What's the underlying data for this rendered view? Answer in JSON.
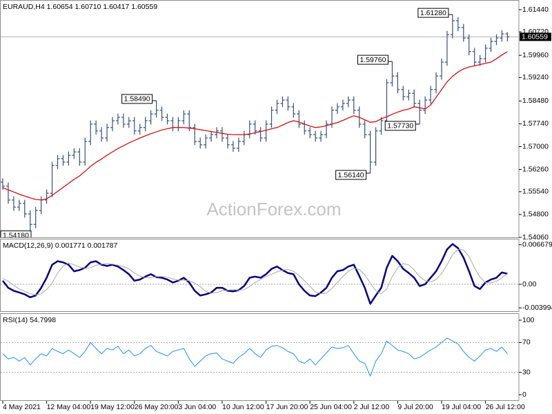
{
  "chart_data": [
    {
      "type": "ohlc",
      "title": "EURAUD,H4  1.60654 1.60710 1.60417 1.60559",
      "watermark": "ActionForex.com",
      "color": "#34507e",
      "categories": [
        "4 May 2021",
        null,
        null,
        null,
        null,
        null,
        null,
        null,
        "12 May 04:00",
        null,
        null,
        null,
        null,
        null,
        null,
        null,
        "19 May 12:00",
        null,
        null,
        null,
        null,
        null,
        null,
        null,
        "26 May 20:00",
        null,
        null,
        null,
        null,
        null,
        null,
        null,
        "3 Jun 04:00",
        null,
        null,
        null,
        null,
        null,
        null,
        null,
        "10 Jun 12:00",
        null,
        null,
        null,
        null,
        null,
        null,
        null,
        "17 Jun 20:00",
        null,
        null,
        null,
        null,
        null,
        null,
        null,
        "25 Jun 04:00",
        null,
        null,
        null,
        null,
        null,
        null,
        null,
        "2 Jul 12:00",
        null,
        null,
        null,
        null,
        null,
        null,
        null,
        "9 Jul 20:00",
        null,
        null,
        null,
        null,
        null,
        null,
        null,
        "19 Jul 04:00",
        null,
        null,
        null,
        null,
        null,
        null,
        null,
        "26 Jul 12:00",
        null,
        null,
        null,
        null
      ],
      "open": [
        1.5585,
        1.5572,
        1.5527,
        1.5504,
        1.5516,
        1.5482,
        1.5448,
        1.5493,
        1.5527,
        1.5549,
        1.5639,
        1.5661,
        1.565,
        1.5672,
        1.5683,
        1.565,
        1.5717,
        1.5773,
        1.5751,
        1.5728,
        1.5762,
        1.5784,
        1.5795,
        1.5773,
        1.5784,
        1.5751,
        1.5762,
        1.5784,
        1.5806,
        1.5818,
        1.5795,
        1.5784,
        1.5762,
        1.5784,
        1.5806,
        1.5762,
        1.5717,
        1.5706,
        1.5728,
        1.5739,
        1.5751,
        1.5728,
        1.5706,
        1.5695,
        1.5717,
        1.5739,
        1.5773,
        1.5751,
        1.5728,
        1.5773,
        1.5818,
        1.584,
        1.5851,
        1.5829,
        1.5806,
        1.5773,
        1.5751,
        1.5739,
        1.5728,
        1.5739,
        1.5773,
        1.5818,
        1.5829,
        1.584,
        1.5851,
        1.5818,
        1.5773,
        1.5739,
        1.565,
        1.5751,
        1.5784,
        1.5907,
        1.5929,
        1.5885,
        1.5862,
        1.5873,
        1.584,
        1.5818,
        1.5851,
        1.5885,
        1.5929,
        1.5974,
        1.6063,
        1.6108,
        1.6086,
        1.6052,
        1.6008,
        1.5974,
        1.5985,
        1.6019,
        1.6041,
        1.6052,
        1.60654
      ],
      "high": [
        1.5597,
        1.5584,
        1.5539,
        1.5528,
        1.5528,
        1.5494,
        1.5505,
        1.5539,
        1.5561,
        1.5651,
        1.5673,
        1.5673,
        1.5684,
        1.5695,
        1.5695,
        1.5729,
        1.5785,
        1.5785,
        1.5763,
        1.5774,
        1.5796,
        1.5807,
        1.5807,
        1.5796,
        1.5796,
        1.5774,
        1.5796,
        1.5818,
        1.5849,
        1.583,
        1.5807,
        1.5796,
        1.5796,
        1.5818,
        1.5818,
        1.5774,
        1.5729,
        1.574,
        1.5751,
        1.5763,
        1.5763,
        1.574,
        1.5718,
        1.5729,
        1.5751,
        1.5785,
        1.5785,
        1.5763,
        1.5785,
        1.583,
        1.5852,
        1.5863,
        1.5863,
        1.5841,
        1.5818,
        1.5785,
        1.5763,
        1.5751,
        1.5751,
        1.5785,
        1.583,
        1.5841,
        1.5852,
        1.5863,
        1.5863,
        1.583,
        1.5785,
        1.5751,
        1.5763,
        1.5796,
        1.5919,
        1.5976,
        1.5941,
        1.5897,
        1.5885,
        1.5885,
        1.5852,
        1.5863,
        1.5897,
        1.5941,
        1.5986,
        1.6075,
        1.6128,
        1.612,
        1.6098,
        1.6064,
        1.602,
        1.5997,
        1.6031,
        1.6053,
        1.6064,
        1.6077,
        1.6071
      ],
      "low": [
        1.556,
        1.5515,
        1.5492,
        1.5492,
        1.547,
        1.5418,
        1.5436,
        1.5481,
        1.5515,
        1.5537,
        1.5627,
        1.5638,
        1.5638,
        1.566,
        1.5638,
        1.5638,
        1.5705,
        1.5739,
        1.5716,
        1.5716,
        1.575,
        1.5772,
        1.5761,
        1.5761,
        1.5739,
        1.5739,
        1.575,
        1.5772,
        1.5794,
        1.5783,
        1.5772,
        1.575,
        1.575,
        1.5772,
        1.575,
        1.5705,
        1.5694,
        1.5694,
        1.5716,
        1.5727,
        1.5716,
        1.5694,
        1.5683,
        1.5683,
        1.5705,
        1.5727,
        1.5739,
        1.5716,
        1.5716,
        1.5761,
        1.5806,
        1.5828,
        1.5817,
        1.5794,
        1.5761,
        1.5739,
        1.5727,
        1.5716,
        1.5716,
        1.5727,
        1.5761,
        1.5806,
        1.5817,
        1.5828,
        1.5806,
        1.5761,
        1.5727,
        1.5614,
        1.5638,
        1.5739,
        1.5772,
        1.5895,
        1.5873,
        1.585,
        1.585,
        1.5828,
        1.5773,
        1.5806,
        1.5839,
        1.5873,
        1.5917,
        1.5962,
        1.6051,
        1.6074,
        1.604,
        1.5996,
        1.5962,
        1.5962,
        1.5973,
        1.6007,
        1.6029,
        1.604,
        1.60417
      ],
      "close": [
        1.5572,
        1.5527,
        1.5504,
        1.5516,
        1.5482,
        1.5448,
        1.5493,
        1.5527,
        1.5549,
        1.5639,
        1.5661,
        1.565,
        1.5672,
        1.5683,
        1.565,
        1.5717,
        1.5773,
        1.5751,
        1.5728,
        1.5762,
        1.5784,
        1.5795,
        1.5773,
        1.5784,
        1.5751,
        1.5762,
        1.5784,
        1.5806,
        1.5818,
        1.5795,
        1.5784,
        1.5762,
        1.5784,
        1.5806,
        1.5762,
        1.5717,
        1.5706,
        1.5728,
        1.5739,
        1.5751,
        1.5728,
        1.5706,
        1.5695,
        1.5717,
        1.5739,
        1.5773,
        1.5751,
        1.5728,
        1.5773,
        1.5818,
        1.584,
        1.5851,
        1.5829,
        1.5806,
        1.5773,
        1.5751,
        1.5739,
        1.5728,
        1.5739,
        1.5773,
        1.5818,
        1.5829,
        1.584,
        1.5851,
        1.5818,
        1.5773,
        1.5739,
        1.565,
        1.5751,
        1.5784,
        1.5907,
        1.5929,
        1.5885,
        1.5862,
        1.5873,
        1.584,
        1.5818,
        1.5851,
        1.5885,
        1.5929,
        1.5974,
        1.6063,
        1.6108,
        1.6086,
        1.6052,
        1.6008,
        1.5974,
        1.5985,
        1.6019,
        1.6041,
        1.6052,
        1.60654,
        1.60559
      ],
      "ma": {
        "color": "#d01010",
        "values": [
          1.5567,
          1.556,
          1.5553,
          1.5546,
          1.554,
          1.5534,
          1.5529,
          1.5527,
          1.5531,
          1.5542,
          1.5555,
          1.5568,
          1.5581,
          1.5594,
          1.5605,
          1.562,
          1.5636,
          1.5649,
          1.566,
          1.5672,
          1.5683,
          1.5694,
          1.5703,
          1.5712,
          1.572,
          1.5728,
          1.5735,
          1.5742,
          1.5748,
          1.5754,
          1.5758,
          1.5762,
          1.5762,
          1.5762,
          1.576,
          1.5758,
          1.5755,
          1.5752,
          1.5749,
          1.5746,
          1.5743,
          1.574,
          1.5739,
          1.5739,
          1.5739,
          1.5741,
          1.5745,
          1.5749,
          1.5753,
          1.5758,
          1.5762,
          1.577,
          1.5778,
          1.5784,
          1.578,
          1.5773,
          1.5767,
          1.5762,
          1.5764,
          1.5768,
          1.5773,
          1.5778,
          1.5785,
          1.5793,
          1.58,
          1.5795,
          1.5787,
          1.5779,
          1.5781,
          1.579,
          1.5797,
          1.5805,
          1.5812,
          1.5818,
          1.5822,
          1.5829,
          1.5826,
          1.5822,
          1.5835,
          1.586,
          1.5885,
          1.591,
          1.5928,
          1.5942,
          1.5952,
          1.5958,
          1.5962,
          1.5966,
          1.597,
          1.5974,
          1.5985,
          1.5997,
          1.6008
        ]
      },
      "annotations": [
        {
          "value": 1.5418,
          "label": "1.54180"
        },
        {
          "value": 1.5849,
          "label": "1.58490"
        },
        {
          "value": 1.5614,
          "label": "1.56140"
        },
        {
          "value": 1.5976,
          "label": "1.59760"
        },
        {
          "value": 1.5773,
          "label": "1.57730"
        },
        {
          "value": 1.6128,
          "label": "1.61280"
        }
      ],
      "ylim": [
        1.5406,
        1.61708
      ],
      "yticks": [
        {
          "value": 1.6144,
          "label": "1.61440"
        },
        {
          "value": 1.6072,
          "label": "1.60720"
        },
        {
          "value": 1.5996,
          "label": "1.59960"
        },
        {
          "value": 1.5924,
          "label": "1.59240"
        },
        {
          "value": 1.5848,
          "label": "1.58480"
        },
        {
          "value": 1.5774,
          "label": "1.57740"
        },
        {
          "value": 1.57,
          "label": "1.57000"
        },
        {
          "value": 1.5626,
          "label": "1.56260"
        },
        {
          "value": 1.5554,
          "label": "1.55540"
        },
        {
          "value": 1.548,
          "label": "1.54800"
        },
        {
          "value": 1.5406,
          "label": "1.54060"
        }
      ]
    },
    {
      "type": "line",
      "title": "MACD(12,26,9) 0.001771 0.001787",
      "series": [
        {
          "color": "#000080",
          "width": 2.5,
          "values": [
            0.0006,
            -0.0006,
            -0.0011,
            -0.0014,
            -0.0017,
            -0.0022,
            -0.0019,
            -0.0006,
            0.0011,
            0.0033,
            0.0039,
            0.0037,
            0.0033,
            0.0022,
            0.0024,
            0.0028,
            0.0037,
            0.0039,
            0.0033,
            0.0031,
            0.0033,
            0.003,
            0.0024,
            0.0017,
            0.0006,
            0.0008,
            0.0013,
            0.0017,
            0.0012,
            0.0011,
            0.0008,
            0.0003,
            0.0006,
            0.0011,
            0.0003,
            -0.0011,
            -0.0019,
            -0.0017,
            -0.0014,
            -0.0006,
            -0.0006,
            -0.0011,
            -0.0012,
            -0.001,
            -0.0003,
            0.0011,
            0.0013,
            0.0011,
            0.0017,
            0.0026,
            0.003,
            0.0024,
            0.0019,
            0.0017,
            0,
            -0.0011,
            -0.0019,
            -0.002,
            -0.0014,
            -0.0006,
            0.0011,
            0.0022,
            0.0024,
            0.003,
            0.0033,
            0.0014,
            -0.0006,
            -0.0033,
            -0.0019,
            -0.0006,
            0.0028,
            0.0048,
            0.0039,
            0.0026,
            0.0019,
            0.0011,
            -0.0003,
            0,
            0.0011,
            0.0022,
            0.0039,
            0.0059,
            0.0068,
            0.0061,
            0.0045,
            0.0022,
            -0.0003,
            -0.0008,
            0.0003,
            0.0008,
            0.0011,
            0.002,
            0.001771
          ]
        },
        {
          "color": "#a8a8a8",
          "width": 1,
          "values": [
            0.001,
            0.0005,
            -0.0002,
            -0.0008,
            -0.0012,
            -0.0016,
            -0.0018,
            -0.0016,
            -0.0009,
            0.0002,
            0.0019,
            0.003,
            0.0036,
            0.0033,
            0.0029,
            0.0027,
            0.0028,
            0.0032,
            0.0034,
            0.0035,
            0.0034,
            0.0032,
            0.003,
            0.0026,
            0.0019,
            0.0014,
            0.0011,
            0.0011,
            0.0013,
            0.0013,
            0.0012,
            0.0009,
            0.0007,
            0.0007,
            0.0006,
            0.0002,
            -0.0004,
            -0.0012,
            -0.0015,
            -0.0014,
            -0.0011,
            -0.001,
            -0.0009,
            -0.001,
            -0.0009,
            -0.0004,
            0.0003,
            0.0008,
            0.0013,
            0.0017,
            0.0021,
            0.0024,
            0.0025,
            0.0022,
            0.0015,
            0.0006,
            -0.0003,
            -0.0013,
            -0.0016,
            -0.0015,
            -0.0007,
            0.0003,
            0.0013,
            0.0022,
            0.0027,
            0.0025,
            0.0016,
            0.0002,
            -0.0011,
            -0.0016,
            -0.0008,
            0.0013,
            0.0028,
            0.0035,
            0.0033,
            0.0024,
            0.0013,
            0.0006,
            0.0004,
            0.0008,
            0.0018,
            0.0033,
            0.005,
            0.0059,
            0.0058,
            0.0047,
            0.0028,
            0.0012,
            0.0003,
            0.0002,
            0.0005,
            0.0011,
            0.001787
          ]
        }
      ],
      "ylim": [
        -0.00455,
        0.00746
      ],
      "yticks": [
        0.006679,
        {
          "value": 0,
          "label": "0.00"
        },
        -0.003994
      ],
      "levels": [
        0
      ]
    },
    {
      "type": "line",
      "title": "RSI(14) 54.7998",
      "series": [
        {
          "color": "#1e90ff",
          "width": 1,
          "values": [
            55,
            48,
            50,
            45,
            50,
            40,
            48,
            55,
            52,
            62,
            58,
            55,
            60,
            55,
            50,
            58,
            70,
            62,
            55,
            62,
            60,
            65,
            55,
            60,
            52,
            55,
            62,
            66,
            58,
            55,
            52,
            58,
            60,
            62,
            48,
            38,
            45,
            52,
            55,
            56,
            48,
            45,
            42,
            50,
            55,
            62,
            55,
            50,
            60,
            65,
            66,
            63,
            58,
            55,
            45,
            42,
            48,
            40,
            48,
            56,
            64,
            62,
            63,
            66,
            55,
            45,
            42,
            25,
            45,
            55,
            72,
            66,
            60,
            58,
            55,
            48,
            50,
            55,
            60,
            64,
            70,
            76,
            72,
            68,
            58,
            50,
            45,
            52,
            60,
            62,
            58,
            64,
            54.7998
          ]
        }
      ],
      "ylim": [
        -7.4,
        107.4
      ],
      "yticks": [
        100,
        70,
        30,
        0
      ],
      "levels": [
        70,
        30
      ]
    }
  ]
}
